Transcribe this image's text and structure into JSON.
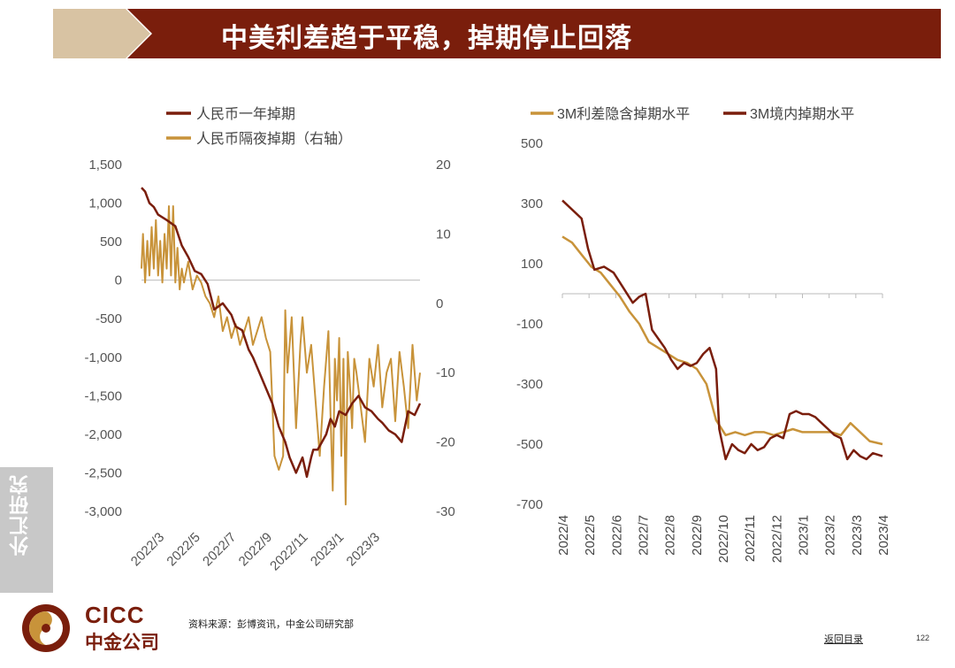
{
  "title": "中美利差趋于平稳，掉期停止回落",
  "side_tab": "外汇研究",
  "logo": {
    "en": "CICC",
    "cn": "中金公司"
  },
  "source": "资料来源：彭博资讯，中金公司研究部",
  "back_link": "返回目录",
  "page_number": "122",
  "colors": {
    "dark_red": "#7a1e0c",
    "gold": "#c8933a",
    "title_bar": "#7a1e0c",
    "chevron": "#d8c3a3"
  },
  "chart_data": [
    {
      "type": "line",
      "legend": [
        "人民币一年掉期",
        "人民币隔夜掉期（右轴）"
      ],
      "legend_position": "top-left",
      "x_ticks": [
        "2022/3",
        "2022/5",
        "2022/7",
        "2022/9",
        "2022/11",
        "2023/1",
        "2023/3"
      ],
      "x_range": [
        2022.083,
        2023.375
      ],
      "y_left": {
        "range": [
          -3000,
          1500
        ],
        "ticks": [
          "1,500",
          "1,000",
          "500",
          "0",
          "-500",
          "-1,000",
          "-1,500",
          "-2,000",
          "-2,500",
          "-3,000"
        ]
      },
      "y_right": {
        "range": [
          -30,
          20
        ],
        "ticks": [
          "20",
          "10",
          "0",
          "-10",
          "-20",
          "-30"
        ]
      },
      "grid": false,
      "series": [
        {
          "name": "人民币一年掉期",
          "axis": "left",
          "color": "#7a1e0c",
          "x": [
            2022.083,
            2022.1,
            2022.12,
            2022.14,
            2022.16,
            2022.2,
            2022.24,
            2022.27,
            2022.3,
            2022.33,
            2022.36,
            2022.39,
            2022.42,
            2022.46,
            2022.5,
            2022.52,
            2022.55,
            2022.58,
            2022.6,
            2022.63,
            2022.66,
            2022.69,
            2022.72,
            2022.75,
            2022.77,
            2022.8,
            2022.83,
            2022.85,
            2022.87,
            2022.88,
            2022.9,
            2022.92,
            2022.94,
            2022.96,
            2022.98,
            2023.0,
            2023.03,
            2023.06,
            2023.09,
            2023.12,
            2023.15,
            2023.18,
            2023.2,
            2023.23,
            2023.26,
            2023.29,
            2023.32,
            2023.35,
            2023.375
          ],
          "y": [
            1200,
            1150,
            1000,
            950,
            850,
            780,
            700,
            450,
            300,
            120,
            80,
            -50,
            -380,
            -300,
            -450,
            -600,
            -650,
            -900,
            -1000,
            -1200,
            -1400,
            -1600,
            -1900,
            -2100,
            -2300,
            -2500,
            -2300,
            -2550,
            -2300,
            -2200,
            -2200,
            -2100,
            -2000,
            -1800,
            -1900,
            -1700,
            -1750,
            -1600,
            -1500,
            -1650,
            -1700,
            -1800,
            -1850,
            -1950,
            -2000,
            -2100,
            -1700,
            -1750,
            -1600
          ]
        },
        {
          "name": "人民币隔夜掉期（右轴）",
          "axis": "right",
          "color": "#c8933a",
          "x": [
            2022.083,
            2022.09,
            2022.1,
            2022.11,
            2022.12,
            2022.13,
            2022.14,
            2022.15,
            2022.16,
            2022.17,
            2022.18,
            2022.19,
            2022.2,
            2022.21,
            2022.22,
            2022.23,
            2022.24,
            2022.25,
            2022.26,
            2022.27,
            2022.28,
            2022.3,
            2022.32,
            2022.34,
            2022.36,
            2022.38,
            2022.4,
            2022.42,
            2022.44,
            2022.46,
            2022.48,
            2022.5,
            2022.52,
            2022.54,
            2022.56,
            2022.58,
            2022.6,
            2022.62,
            2022.64,
            2022.66,
            2022.68,
            2022.7,
            2022.72,
            2022.74,
            2022.75,
            2022.76,
            2022.78,
            2022.8,
            2022.82,
            2022.83,
            2022.85,
            2022.87,
            2022.89,
            2022.91,
            2022.93,
            2022.95,
            2022.96,
            2022.97,
            2022.98,
            2022.99,
            2023.0,
            2023.01,
            2023.02,
            2023.03,
            2023.04,
            2023.05,
            2023.06,
            2023.07,
            2023.08,
            2023.1,
            2023.12,
            2023.14,
            2023.16,
            2023.18,
            2023.2,
            2023.22,
            2023.24,
            2023.26,
            2023.28,
            2023.3,
            2023.32,
            2023.34,
            2023.36,
            2023.375
          ],
          "y": [
            5,
            10,
            3,
            9,
            4,
            11,
            5,
            12,
            4,
            9,
            3,
            10,
            5,
            14,
            4,
            14,
            3,
            8,
            2,
            5,
            3,
            6,
            2,
            4,
            3,
            1,
            0,
            -2,
            1,
            -4,
            -2,
            -5,
            -3,
            -6,
            -4,
            -2,
            -6,
            -4,
            -2,
            -5,
            -7,
            -22,
            -24,
            -22,
            -1,
            -10,
            -2,
            -18,
            -6,
            -2,
            -10,
            -6,
            -14,
            -22,
            -12,
            -4,
            -16,
            -27,
            -8,
            -14,
            -5,
            -22,
            -8,
            -29,
            -7,
            -12,
            -18,
            -8,
            -10,
            -15,
            -20,
            -8,
            -12,
            -6,
            -15,
            -10,
            -8,
            -17,
            -7,
            -12,
            -18,
            -6,
            -14,
            -10
          ]
        }
      ]
    },
    {
      "type": "line",
      "legend": [
        "3M利差隐含掉期水平",
        "3M境内掉期水平"
      ],
      "legend_position": "top",
      "x_ticks": [
        "2022/4",
        "2022/5",
        "2022/6",
        "2022/7",
        "2022/8",
        "2022/9",
        "2022/10",
        "2022/11",
        "2022/12",
        "2023/1",
        "2023/2",
        "2023/3",
        "2023/4"
      ],
      "x_range": [
        2022.25,
        2023.25
      ],
      "y": {
        "range": [
          -700,
          500
        ],
        "ticks": [
          "500",
          "300",
          "100",
          "-100",
          "-300",
          "-500",
          "-700"
        ]
      },
      "grid": false,
      "series": [
        {
          "name": "3M利差隐含掉期水平",
          "color": "#c8933a",
          "x": [
            2022.25,
            2022.28,
            2022.31,
            2022.34,
            2022.37,
            2022.4,
            2022.43,
            2022.46,
            2022.49,
            2022.52,
            2022.55,
            2022.58,
            2022.61,
            2022.64,
            2022.67,
            2022.7,
            2022.73,
            2022.76,
            2022.79,
            2022.82,
            2022.85,
            2022.88,
            2022.91,
            2022.94,
            2022.97,
            2023.0,
            2023.03,
            2023.06,
            2023.09,
            2023.12,
            2023.15,
            2023.18,
            2023.21,
            2023.25
          ],
          "y": [
            190,
            170,
            130,
            90,
            70,
            30,
            -10,
            -60,
            -100,
            -160,
            -180,
            -200,
            -220,
            -230,
            -250,
            -300,
            -420,
            -470,
            -460,
            -470,
            -460,
            -460,
            -470,
            -460,
            -450,
            -460,
            -460,
            -460,
            -460,
            -470,
            -430,
            -460,
            -490,
            -500
          ]
        },
        {
          "name": "3M境内掉期水平",
          "color": "#7a1e0c",
          "x": [
            2022.25,
            2022.28,
            2022.31,
            2022.33,
            2022.35,
            2022.38,
            2022.41,
            2022.44,
            2022.47,
            2022.49,
            2022.51,
            2022.53,
            2022.55,
            2022.57,
            2022.59,
            2022.61,
            2022.63,
            2022.65,
            2022.67,
            2022.69,
            2022.71,
            2022.73,
            2022.74,
            2022.76,
            2022.78,
            2022.8,
            2022.82,
            2022.84,
            2022.86,
            2022.88,
            2022.9,
            2022.92,
            2022.94,
            2022.96,
            2022.98,
            2023.0,
            2023.02,
            2023.04,
            2023.06,
            2023.08,
            2023.1,
            2023.12,
            2023.14,
            2023.16,
            2023.18,
            2023.2,
            2023.22,
            2023.25
          ],
          "y": [
            310,
            280,
            250,
            150,
            80,
            90,
            70,
            20,
            -30,
            -10,
            0,
            -120,
            -150,
            -180,
            -220,
            -250,
            -230,
            -240,
            -230,
            -200,
            -180,
            -250,
            -450,
            -550,
            -500,
            -520,
            -530,
            -500,
            -520,
            -510,
            -480,
            -470,
            -480,
            -400,
            -390,
            -400,
            -400,
            -410,
            -430,
            -450,
            -470,
            -480,
            -550,
            -520,
            -540,
            -550,
            -530,
            -540
          ]
        }
      ]
    }
  ]
}
